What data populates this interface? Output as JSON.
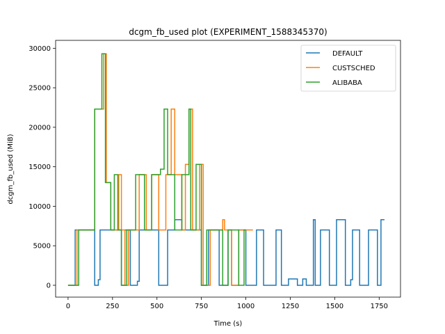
{
  "chart_data": {
    "type": "line",
    "title": "dcgm_fb_used plot (EXPERIMENT_1588345370)",
    "xlabel": "Time (s)",
    "ylabel": "dcgm_fb_used (MiB)",
    "xlim": [
      -70,
      1870
    ],
    "ylim": [
      -1500,
      31000
    ],
    "xticks": [
      0,
      250,
      500,
      750,
      1000,
      1250,
      1500,
      1750
    ],
    "yticks": [
      0,
      5000,
      10000,
      15000,
      20000,
      25000,
      30000
    ],
    "grid": false,
    "legend_position": "top-right",
    "series": [
      {
        "name": "DEFAULT",
        "color": "#1f77b4",
        "points": [
          [
            0,
            0
          ],
          [
            40,
            0
          ],
          [
            40,
            7000
          ],
          [
            150,
            7000
          ],
          [
            150,
            0
          ],
          [
            170,
            0
          ],
          [
            170,
            700
          ],
          [
            180,
            700
          ],
          [
            180,
            7000
          ],
          [
            300,
            7000
          ],
          [
            300,
            0
          ],
          [
            320,
            0
          ],
          [
            320,
            7000
          ],
          [
            350,
            7000
          ],
          [
            350,
            0
          ],
          [
            390,
            0
          ],
          [
            390,
            500
          ],
          [
            400,
            500
          ],
          [
            400,
            7000
          ],
          [
            510,
            7000
          ],
          [
            510,
            0
          ],
          [
            560,
            0
          ],
          [
            560,
            7000
          ],
          [
            600,
            7000
          ],
          [
            600,
            8300
          ],
          [
            640,
            8300
          ],
          [
            640,
            7000
          ],
          [
            750,
            7000
          ],
          [
            750,
            0
          ],
          [
            790,
            0
          ],
          [
            790,
            7000
          ],
          [
            850,
            7000
          ],
          [
            850,
            0
          ],
          [
            900,
            0
          ],
          [
            900,
            7000
          ],
          [
            920,
            7000
          ],
          [
            920,
            0
          ],
          [
            960,
            0
          ],
          [
            960,
            7000
          ],
          [
            1000,
            7000
          ],
          [
            1000,
            0
          ],
          [
            1060,
            0
          ],
          [
            1060,
            7000
          ],
          [
            1100,
            7000
          ],
          [
            1100,
            0
          ],
          [
            1170,
            0
          ],
          [
            1170,
            7000
          ],
          [
            1200,
            7000
          ],
          [
            1200,
            0
          ],
          [
            1240,
            0
          ],
          [
            1240,
            800
          ],
          [
            1290,
            800
          ],
          [
            1290,
            0
          ],
          [
            1320,
            0
          ],
          [
            1320,
            800
          ],
          [
            1340,
            800
          ],
          [
            1340,
            0
          ],
          [
            1380,
            0
          ],
          [
            1380,
            8300
          ],
          [
            1390,
            8300
          ],
          [
            1390,
            0
          ],
          [
            1420,
            0
          ],
          [
            1420,
            7000
          ],
          [
            1470,
            7000
          ],
          [
            1470,
            0
          ],
          [
            1510,
            0
          ],
          [
            1510,
            8300
          ],
          [
            1560,
            8300
          ],
          [
            1560,
            0
          ],
          [
            1590,
            0
          ],
          [
            1590,
            700
          ],
          [
            1600,
            700
          ],
          [
            1600,
            7000
          ],
          [
            1640,
            7000
          ],
          [
            1640,
            0
          ],
          [
            1690,
            0
          ],
          [
            1690,
            7000
          ],
          [
            1740,
            7000
          ],
          [
            1740,
            0
          ],
          [
            1760,
            0
          ],
          [
            1760,
            8300
          ],
          [
            1780,
            8300
          ]
        ]
      },
      {
        "name": "CUSTSCHED",
        "color": "#ff7f0e",
        "points": [
          [
            0,
            0
          ],
          [
            50,
            0
          ],
          [
            50,
            7000
          ],
          [
            150,
            7000
          ],
          [
            150,
            22300
          ],
          [
            200,
            22300
          ],
          [
            200,
            29300
          ],
          [
            215,
            29300
          ],
          [
            215,
            13000
          ],
          [
            240,
            13000
          ],
          [
            240,
            7000
          ],
          [
            285,
            7000
          ],
          [
            285,
            14000
          ],
          [
            300,
            14000
          ],
          [
            300,
            7000
          ],
          [
            320,
            7000
          ],
          [
            320,
            0
          ],
          [
            340,
            0
          ],
          [
            340,
            7000
          ],
          [
            400,
            7000
          ],
          [
            400,
            14000
          ],
          [
            440,
            14000
          ],
          [
            440,
            7000
          ],
          [
            470,
            7000
          ],
          [
            470,
            14000
          ],
          [
            510,
            14000
          ],
          [
            510,
            7000
          ],
          [
            550,
            7000
          ],
          [
            550,
            14000
          ],
          [
            580,
            14000
          ],
          [
            580,
            22300
          ],
          [
            600,
            22300
          ],
          [
            600,
            14000
          ],
          [
            640,
            14000
          ],
          [
            640,
            7000
          ],
          [
            660,
            7000
          ],
          [
            660,
            15300
          ],
          [
            680,
            15300
          ],
          [
            680,
            22300
          ],
          [
            700,
            22300
          ],
          [
            700,
            7000
          ],
          [
            740,
            7000
          ],
          [
            740,
            15300
          ],
          [
            760,
            15300
          ],
          [
            760,
            0
          ],
          [
            800,
            0
          ],
          [
            800,
            7000
          ],
          [
            870,
            7000
          ],
          [
            870,
            8300
          ],
          [
            880,
            8300
          ],
          [
            880,
            7000
          ],
          [
            920,
            7000
          ],
          [
            920,
            0
          ],
          [
            960,
            0
          ],
          [
            960,
            7000
          ],
          [
            1040,
            7000
          ]
        ]
      },
      {
        "name": "ALIBABA",
        "color": "#2ca02c",
        "points": [
          [
            0,
            0
          ],
          [
            60,
            0
          ],
          [
            60,
            7000
          ],
          [
            150,
            7000
          ],
          [
            150,
            22300
          ],
          [
            190,
            22300
          ],
          [
            190,
            29300
          ],
          [
            210,
            29300
          ],
          [
            210,
            13000
          ],
          [
            240,
            13000
          ],
          [
            240,
            7000
          ],
          [
            260,
            7000
          ],
          [
            260,
            14000
          ],
          [
            280,
            14000
          ],
          [
            280,
            7000
          ],
          [
            300,
            7000
          ],
          [
            300,
            0
          ],
          [
            330,
            0
          ],
          [
            330,
            7000
          ],
          [
            380,
            7000
          ],
          [
            380,
            14000
          ],
          [
            430,
            14000
          ],
          [
            430,
            7000
          ],
          [
            470,
            7000
          ],
          [
            470,
            14000
          ],
          [
            520,
            14000
          ],
          [
            520,
            14700
          ],
          [
            540,
            14700
          ],
          [
            540,
            22300
          ],
          [
            560,
            22300
          ],
          [
            560,
            14000
          ],
          [
            600,
            14000
          ],
          [
            600,
            7000
          ],
          [
            640,
            7000
          ],
          [
            640,
            14000
          ],
          [
            680,
            14000
          ],
          [
            680,
            22300
          ],
          [
            690,
            22300
          ],
          [
            690,
            7000
          ],
          [
            720,
            7000
          ],
          [
            720,
            15300
          ],
          [
            750,
            15300
          ],
          [
            750,
            0
          ],
          [
            780,
            0
          ],
          [
            780,
            7000
          ],
          [
            870,
            7000
          ],
          [
            870,
            0
          ],
          [
            900,
            0
          ],
          [
            900,
            7000
          ],
          [
            960,
            7000
          ],
          [
            960,
            0
          ],
          [
            990,
            0
          ],
          [
            990,
            7000
          ],
          [
            1000,
            7000
          ]
        ]
      }
    ]
  }
}
